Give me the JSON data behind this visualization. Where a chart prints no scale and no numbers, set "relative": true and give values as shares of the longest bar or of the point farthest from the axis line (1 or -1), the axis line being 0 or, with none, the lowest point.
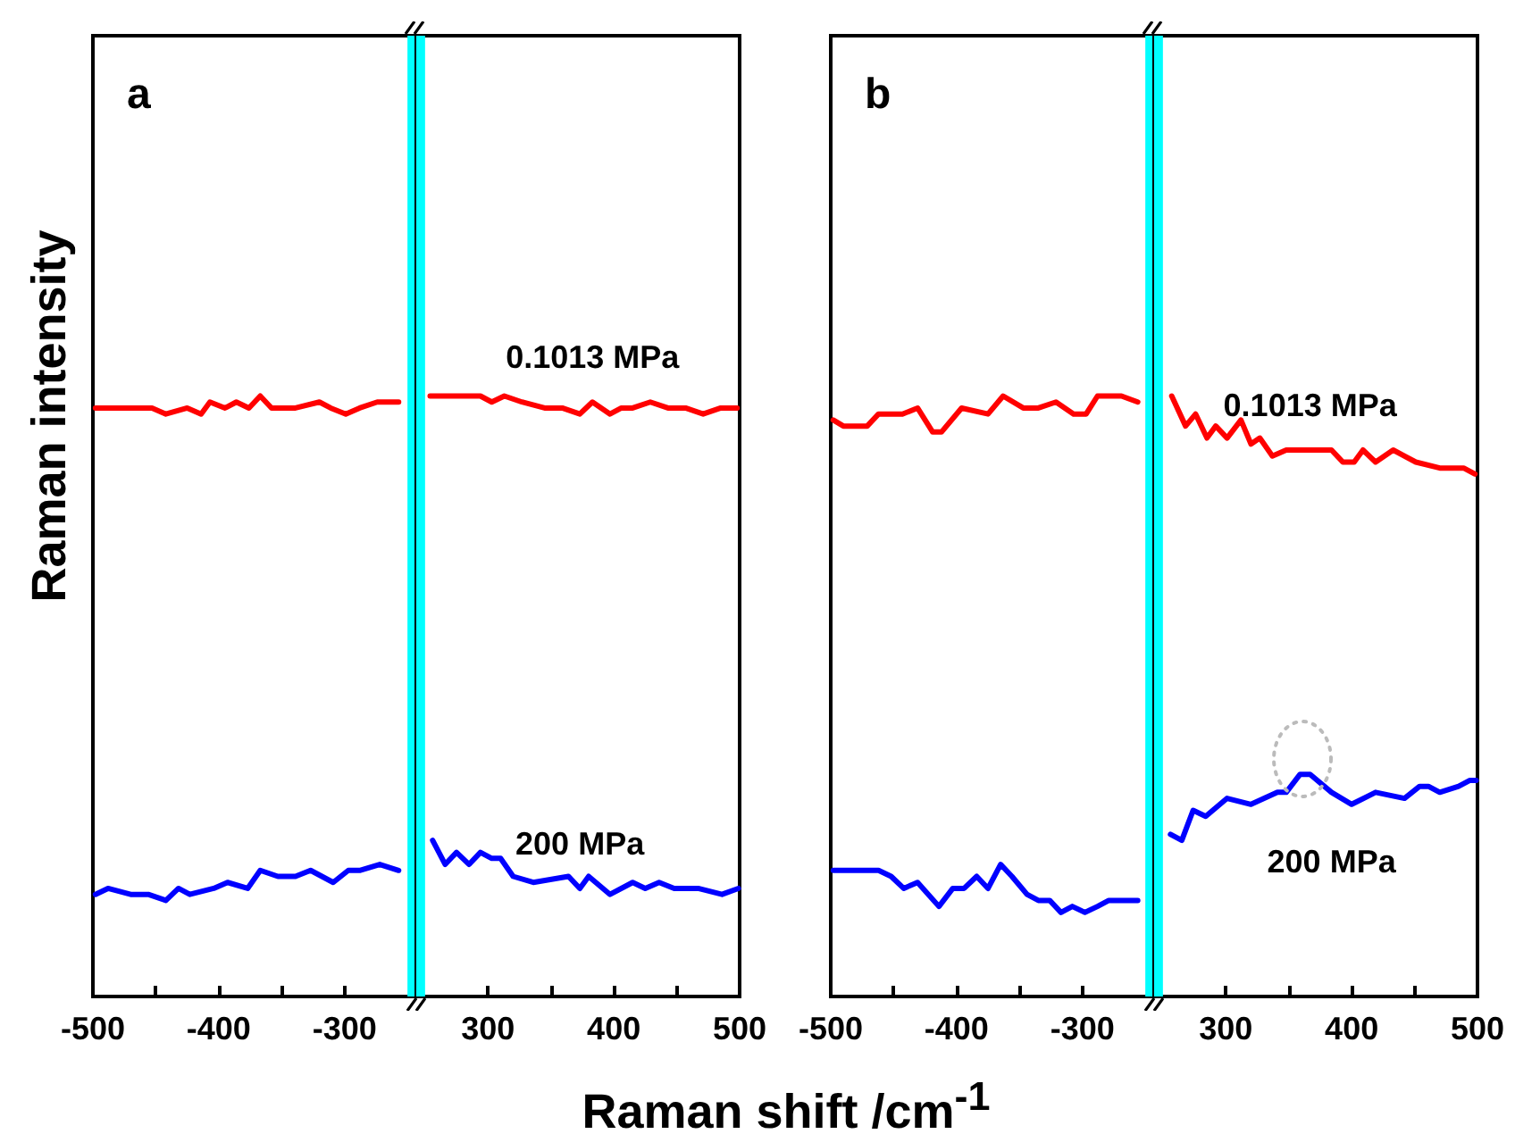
{
  "chart_data": [
    {
      "type": "line",
      "title": "a",
      "ylabel": "Raman intensity",
      "xlabel": "Raman shift /cm$^{-1}$",
      "relative": true,
      "xlim": [
        -500,
        -243
      ],
      "bands": [
        {
          "axis": "x",
          "from": -250,
          "to": -243,
          "color": "#00ffff"
        }
      ],
      "xticks": [
        -500,
        {
          "value": -450,
          "label": null
        },
        -400,
        {
          "value": -350,
          "label": null
        },
        -300
      ],
      "grid": false,
      "legend": false,
      "marker": "none",
      "line_style": "solid",
      "series": [
        {
          "color": "#ff0000",
          "x": [
            -498,
            -479,
            -453,
            -442,
            -425,
            -414,
            -407,
            -395,
            -386,
            -376,
            -367,
            -358,
            -339,
            -320,
            -311,
            -299,
            -288,
            -274,
            -257
          ],
          "values": [
            0.98,
            0.98,
            0.98,
            0.97,
            0.98,
            0.97,
            0.99,
            0.98,
            0.99,
            0.98,
            1.0,
            0.98,
            0.98,
            0.99,
            0.98,
            0.97,
            0.98,
            0.99,
            0.99
          ]
        },
        {
          "color": "#0000ff",
          "x": [
            -498,
            -488,
            -470,
            -456,
            -442,
            -432,
            -423,
            -404,
            -393,
            -377,
            -367,
            -353,
            -339,
            -327,
            -309,
            -297,
            -288,
            -272,
            -257
          ],
          "values": [
            0.17,
            0.18,
            0.17,
            0.17,
            0.16,
            0.18,
            0.17,
            0.18,
            0.19,
            0.18,
            0.21,
            0.2,
            0.2,
            0.21,
            0.19,
            0.21,
            0.21,
            0.22,
            0.21
          ]
        }
      ]
    },
    {
      "type": "line",
      "relative": true,
      "xlim": [
        243,
        500
      ],
      "bands": [
        {
          "axis": "x",
          "from": 243,
          "to": 250,
          "color": "#00ffff"
        }
      ],
      "xticks": [
        300,
        {
          "value": 350,
          "label": null
        },
        400,
        {
          "value": 450,
          "label": null
        },
        500
      ],
      "grid": false,
      "legend": false,
      "marker": "none",
      "line_style": "solid",
      "series": [
        {
          "name": "0.1013 MPa",
          "color": "#ff0000",
          "x": [
            254,
            275,
            294,
            303,
            313,
            327,
            345,
            359,
            373,
            383,
            397,
            406,
            415,
            429,
            443,
            457,
            471,
            485,
            498
          ],
          "values": [
            1.0,
            1.0,
            1.0,
            0.99,
            1.0,
            0.99,
            0.98,
            0.98,
            0.97,
            0.99,
            0.97,
            0.98,
            0.98,
            0.99,
            0.98,
            0.98,
            0.97,
            0.98,
            0.98
          ]
        },
        {
          "name": "200 MPa",
          "color": "#0000ff",
          "x": [
            256,
            266,
            275,
            285,
            294,
            303,
            310,
            320,
            336,
            364,
            373,
            380,
            397,
            415,
            425,
            436,
            448,
            467,
            486,
            499
          ],
          "values": [
            0.26,
            0.22,
            0.24,
            0.22,
            0.24,
            0.23,
            0.23,
            0.2,
            0.19,
            0.2,
            0.18,
            0.2,
            0.17,
            0.19,
            0.18,
            0.19,
            0.18,
            0.18,
            0.17,
            0.18
          ]
        }
      ]
    },
    {
      "type": "line",
      "title": "b",
      "relative": true,
      "xlim": [
        -500,
        -243
      ],
      "bands": [
        {
          "axis": "x",
          "from": -250,
          "to": -243,
          "color": "#00ffff"
        }
      ],
      "xticks": [
        -500,
        {
          "value": -450,
          "label": null
        },
        -400,
        {
          "value": -350,
          "label": null
        },
        -300
      ],
      "grid": false,
      "legend": false,
      "marker": "none",
      "line_style": "solid",
      "series": [
        {
          "color": "#ff0000",
          "x": [
            -498,
            -490,
            -481,
            -471,
            -462,
            -443,
            -431,
            -419,
            -412,
            -396,
            -375,
            -363,
            -347,
            -335,
            -321,
            -307,
            -297,
            -288,
            -269,
            -256
          ],
          "values": [
            0.96,
            0.95,
            0.95,
            0.95,
            0.97,
            0.97,
            0.98,
            0.94,
            0.94,
            0.98,
            0.97,
            1.0,
            0.98,
            0.98,
            0.99,
            0.97,
            0.97,
            1.0,
            1.0,
            0.99
          ]
        },
        {
          "color": "#0000ff",
          "x": [
            -498,
            -485,
            -471,
            -462,
            -452,
            -442,
            -431,
            -414,
            -403,
            -394,
            -384,
            -375,
            -365,
            -356,
            -344,
            -335,
            -326,
            -317,
            -308,
            -298,
            -288,
            -279,
            -256
          ],
          "values": [
            0.21,
            0.21,
            0.21,
            0.21,
            0.2,
            0.18,
            0.19,
            0.15,
            0.18,
            0.18,
            0.2,
            0.18,
            0.22,
            0.2,
            0.17,
            0.16,
            0.16,
            0.14,
            0.15,
            0.14,
            0.15,
            0.16,
            0.16
          ]
        }
      ]
    },
    {
      "type": "line",
      "relative": true,
      "xlim": [
        243,
        500
      ],
      "bands": [
        {
          "axis": "x",
          "from": 243,
          "to": 250,
          "color": "#00ffff"
        }
      ],
      "xticks": [
        300,
        {
          "value": 350,
          "label": null
        },
        400,
        {
          "value": 450,
          "label": null
        },
        500
      ],
      "grid": false,
      "legend": false,
      "marker": "none",
      "line_style": "solid",
      "series": [
        {
          "name": "0.1013 MPa",
          "color": "#ff0000",
          "x": [
            257,
            268,
            276,
            285,
            292,
            301,
            312,
            320,
            327,
            337,
            348,
            358,
            367,
            376,
            384,
            393,
            402,
            409,
            419,
            433,
            451,
            470,
            489,
            498
          ],
          "values": [
            1.0,
            0.95,
            0.97,
            0.93,
            0.95,
            0.93,
            0.96,
            0.92,
            0.93,
            0.9,
            0.91,
            0.91,
            0.91,
            0.91,
            0.91,
            0.89,
            0.89,
            0.91,
            0.89,
            0.91,
            0.89,
            0.88,
            0.88,
            0.87
          ]
        },
        {
          "name": "200 MPa",
          "color": "#0000ff",
          "x": [
            256,
            265,
            274,
            284,
            301,
            320,
            341,
            348,
            359,
            367,
            384,
            400,
            419,
            442,
            454,
            461,
            470,
            485,
            494,
            499
          ],
          "values": [
            0.27,
            0.26,
            0.31,
            0.3,
            0.33,
            0.32,
            0.34,
            0.34,
            0.37,
            0.37,
            0.34,
            0.32,
            0.34,
            0.33,
            0.35,
            0.35,
            0.34,
            0.35,
            0.36,
            0.36
          ]
        }
      ]
    }
  ]
}
